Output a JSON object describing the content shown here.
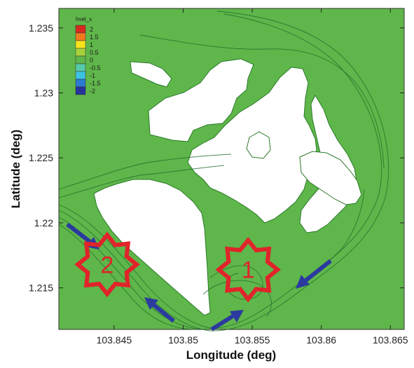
{
  "chart_data": {
    "type": "contour",
    "xlabel": "Longitude (deg)",
    "ylabel": "Latitude (deg)",
    "xlim": [
      103.841,
      103.866
    ],
    "ylim": [
      1.2118,
      1.2365
    ],
    "x_ticks": [
      "103.845",
      "103.85",
      "103.855",
      "103.86",
      "103.865"
    ],
    "x_tick_values": [
      103.845,
      103.85,
      103.855,
      103.86,
      103.865
    ],
    "y_ticks": [
      "1.215",
      "1.22",
      "1.225",
      "1.23",
      "1.235"
    ],
    "y_tick_values": [
      1.215,
      1.22,
      1.225,
      1.23,
      1.235
    ],
    "legend": {
      "title": "hvel_x",
      "levels": [
        {
          "label": "2",
          "color": "#d62a1e"
        },
        {
          "label": "1.5",
          "color": "#f07a1c"
        },
        {
          "label": "1",
          "color": "#f5e41c"
        },
        {
          "label": "0.5",
          "color": "#a6d13a"
        },
        {
          "label": "0",
          "color": "#5fb64a"
        },
        {
          "label": "-0.5",
          "color": "#55c9a8"
        },
        {
          "label": "-1",
          "color": "#3cc3e4"
        },
        {
          "label": "-1.5",
          "color": "#2a7bd0"
        },
        {
          "label": "-2",
          "color": "#24349b"
        }
      ]
    },
    "field_color": "#5fb64a",
    "annotations": [
      {
        "text": "2",
        "x": 103.8445,
        "y": 1.2168,
        "shape": "star",
        "color": "#e0242a"
      },
      {
        "text": "1",
        "x": 103.8547,
        "y": 1.2164,
        "shape": "star",
        "color": "#e0242a"
      }
    ]
  }
}
